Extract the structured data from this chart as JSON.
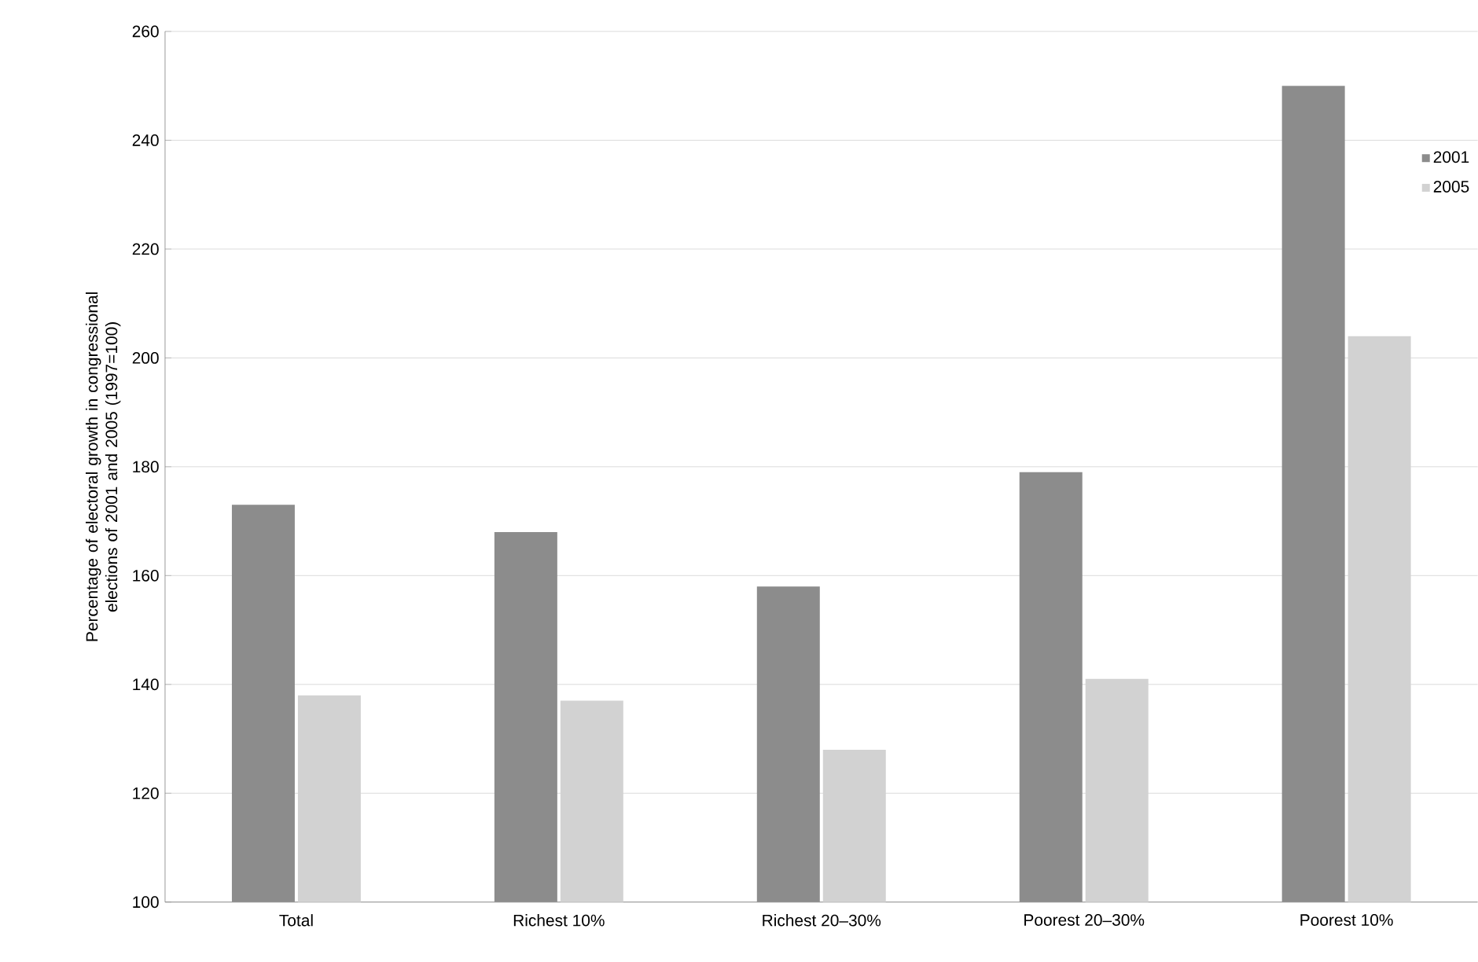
{
  "chart_data": {
    "type": "bar",
    "ylabel": "Percentage of electoral growth in congressional elections of 2001 and 2005 (1997=100)",
    "categories": [
      "Total",
      "Richest 10%",
      "Richest 20–30%",
      "Poorest 20–30%",
      "Poorest 10%"
    ],
    "series": [
      {
        "name": "2001",
        "color": "#8c8c8c",
        "values": [
          173,
          168,
          158,
          179,
          250
        ]
      },
      {
        "name": "2005",
        "color": "#d2d2d2",
        "values": [
          138,
          137,
          128,
          141,
          204
        ]
      }
    ],
    "ylim": [
      100,
      260
    ],
    "yticks": [
      100,
      120,
      140,
      160,
      180,
      200,
      220,
      240,
      260
    ],
    "grid": "y",
    "legend": "top right"
  }
}
